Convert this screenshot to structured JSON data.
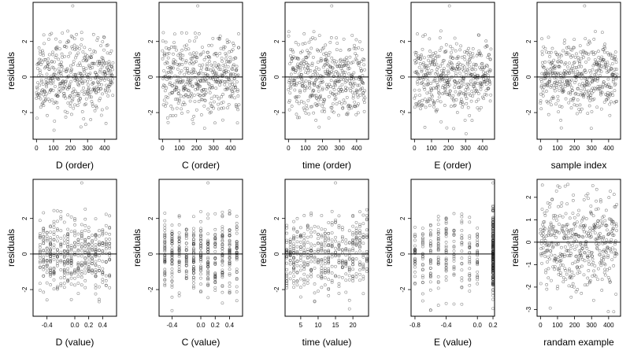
{
  "chart_data": [
    {
      "type": "scatter",
      "xlabel": "D (order)",
      "ylabel": "residuals",
      "xlim": [
        -20,
        470
      ],
      "ylim": [
        -3.5,
        4.2
      ],
      "xticks": [
        0,
        100,
        200,
        300,
        400
      ],
      "yticks": [
        -2,
        0,
        2
      ],
      "xticklabels": [
        "0",
        "100",
        "200",
        "300",
        "400"
      ],
      "yticklabels": [
        "-2",
        "0",
        "2"
      ],
      "hline": 0,
      "gen": {
        "mode": "index",
        "n": 450,
        "seed": 11
      }
    },
    {
      "type": "scatter",
      "xlabel": "C (order)",
      "ylabel": "residuals",
      "xlim": [
        -20,
        470
      ],
      "ylim": [
        -3.5,
        4.2
      ],
      "xticks": [
        0,
        100,
        200,
        300,
        400
      ],
      "yticks": [
        -2,
        0,
        2
      ],
      "xticklabels": [
        "0",
        "100",
        "200",
        "300",
        "400"
      ],
      "yticklabels": [
        "-2",
        "0",
        "2"
      ],
      "hline": 0,
      "gen": {
        "mode": "index",
        "n": 450,
        "seed": 12
      }
    },
    {
      "type": "scatter",
      "xlabel": "time (order)",
      "ylabel": "residuals",
      "xlim": [
        -20,
        470
      ],
      "ylim": [
        -3.5,
        4.2
      ],
      "xticks": [
        0,
        100,
        200,
        300,
        400
      ],
      "yticks": [
        -2,
        0,
        2
      ],
      "xticklabels": [
        "0",
        "100",
        "200",
        "300",
        "400"
      ],
      "yticklabels": [
        "-2",
        "0",
        "2"
      ],
      "hline": 0,
      "gen": {
        "mode": "index",
        "n": 450,
        "seed": 13
      }
    },
    {
      "type": "scatter",
      "xlabel": "E (order)",
      "ylabel": "residuals",
      "xlim": [
        -20,
        470
      ],
      "ylim": [
        -3.5,
        4.2
      ],
      "xticks": [
        0,
        100,
        200,
        300,
        400
      ],
      "yticks": [
        -2,
        0,
        2
      ],
      "xticklabels": [
        "0",
        "100",
        "200",
        "300",
        "400"
      ],
      "yticklabels": [
        "-2",
        "0",
        "2"
      ],
      "hline": 0,
      "gen": {
        "mode": "index",
        "n": 450,
        "seed": 14
      }
    },
    {
      "type": "scatter",
      "xlabel": "sample index",
      "ylabel": "residuals",
      "xlim": [
        -20,
        470
      ],
      "ylim": [
        -3.5,
        4.2
      ],
      "xticks": [
        0,
        100,
        200,
        300,
        400
      ],
      "yticks": [
        -2,
        0,
        2
      ],
      "xticklabels": [
        "0",
        "100",
        "200",
        "300",
        "400"
      ],
      "yticklabels": [
        "-2",
        "0",
        "2"
      ],
      "hline": 0,
      "gen": {
        "mode": "index",
        "n": 450,
        "seed": 15
      }
    },
    {
      "type": "scatter",
      "xlabel": "D (value)",
      "ylabel": "residuals",
      "xlim": [
        -0.6,
        0.6
      ],
      "ylim": [
        -3.5,
        4.2
      ],
      "xticks": [
        -0.4,
        0,
        0.2,
        0.4
      ],
      "yticks": [
        -2,
        0,
        2
      ],
      "xticklabels": [
        "-0.4",
        "0.0",
        "0.2",
        "0.4"
      ],
      "yticklabels": [
        "-2",
        "0",
        "2"
      ],
      "hline": 0,
      "gen": {
        "mode": "discrete",
        "n": 450,
        "seed": 21,
        "levels": [
          -0.5,
          -0.45,
          -0.4,
          -0.35,
          -0.3,
          -0.25,
          -0.2,
          -0.15,
          -0.1,
          -0.05,
          0,
          0.05,
          0.1,
          0.15,
          0.2,
          0.25,
          0.3,
          0.35,
          0.4,
          0.45,
          0.5
        ]
      }
    },
    {
      "type": "scatter",
      "xlabel": "C (value)",
      "ylabel": "residuals",
      "xlim": [
        -0.58,
        0.58
      ],
      "ylim": [
        -3.5,
        4.2
      ],
      "xticks": [
        -0.4,
        0,
        0.2,
        0.4
      ],
      "yticks": [
        -2,
        0,
        2
      ],
      "xticklabels": [
        "-0.4",
        "0.0",
        "0.2",
        "0.4"
      ],
      "yticklabels": [
        "-2",
        "0",
        "2"
      ],
      "hline": 0,
      "gen": {
        "mode": "discrete",
        "n": 450,
        "seed": 22,
        "levels": [
          -0.5,
          -0.4,
          -0.3,
          -0.2,
          -0.1,
          0,
          0.1,
          0.2,
          0.3,
          0.4,
          0.5
        ]
      }
    },
    {
      "type": "scatter",
      "xlabel": "time (value)",
      "ylabel": "residuals",
      "xlim": [
        0.5,
        24.5
      ],
      "ylim": [
        -3.5,
        4.2
      ],
      "xticks": [
        5,
        10,
        15,
        20
      ],
      "yticks": [
        -2,
        0,
        2
      ],
      "xticklabels": [
        "5",
        "10",
        "15",
        "20"
      ],
      "yticklabels": [
        "-2",
        "0",
        "2"
      ],
      "hline": 0,
      "gen": {
        "mode": "discrete",
        "n": 450,
        "seed": 23,
        "levels": [
          1,
          2,
          3,
          4,
          5,
          6,
          7,
          8,
          9,
          10,
          11,
          12,
          13,
          14,
          15,
          16,
          17,
          18,
          19,
          20,
          21,
          22,
          23,
          24
        ]
      }
    },
    {
      "type": "scatter",
      "xlabel": "E (value)",
      "ylabel": "residuals",
      "xlim": [
        -0.85,
        0.22
      ],
      "ylim": [
        -3.5,
        4.2
      ],
      "xticks": [
        -0.8,
        -0.4,
        0,
        0.2
      ],
      "yticks": [
        -2,
        0,
        2
      ],
      "xticklabels": [
        "-0.8",
        "-0.4",
        "0.0",
        "0.2"
      ],
      "yticklabels": [
        "-2",
        "0",
        "2"
      ],
      "hline": 0,
      "gen": {
        "mode": "evalue",
        "n": 450,
        "seed": 24,
        "levels": [
          -0.8,
          -0.7,
          -0.6,
          -0.5,
          -0.4,
          -0.3,
          -0.2,
          -0.1,
          0,
          0.2
        ]
      }
    },
    {
      "type": "scatter",
      "xlabel": "randam example",
      "ylabel": "residuals",
      "xlim": [
        -20,
        470
      ],
      "ylim": [
        -3.3,
        2.8
      ],
      "xticks": [
        0,
        100,
        200,
        300,
        400
      ],
      "yticks": [
        -3,
        -2,
        -1,
        0,
        1,
        2
      ],
      "xticklabels": [
        "0",
        "100",
        "200",
        "300",
        "400"
      ],
      "yticklabels": [
        "-3",
        "-2",
        "-1",
        "0",
        "1",
        "2"
      ],
      "hline": 0,
      "gen": {
        "mode": "index",
        "n": 450,
        "seed": 30
      }
    }
  ]
}
